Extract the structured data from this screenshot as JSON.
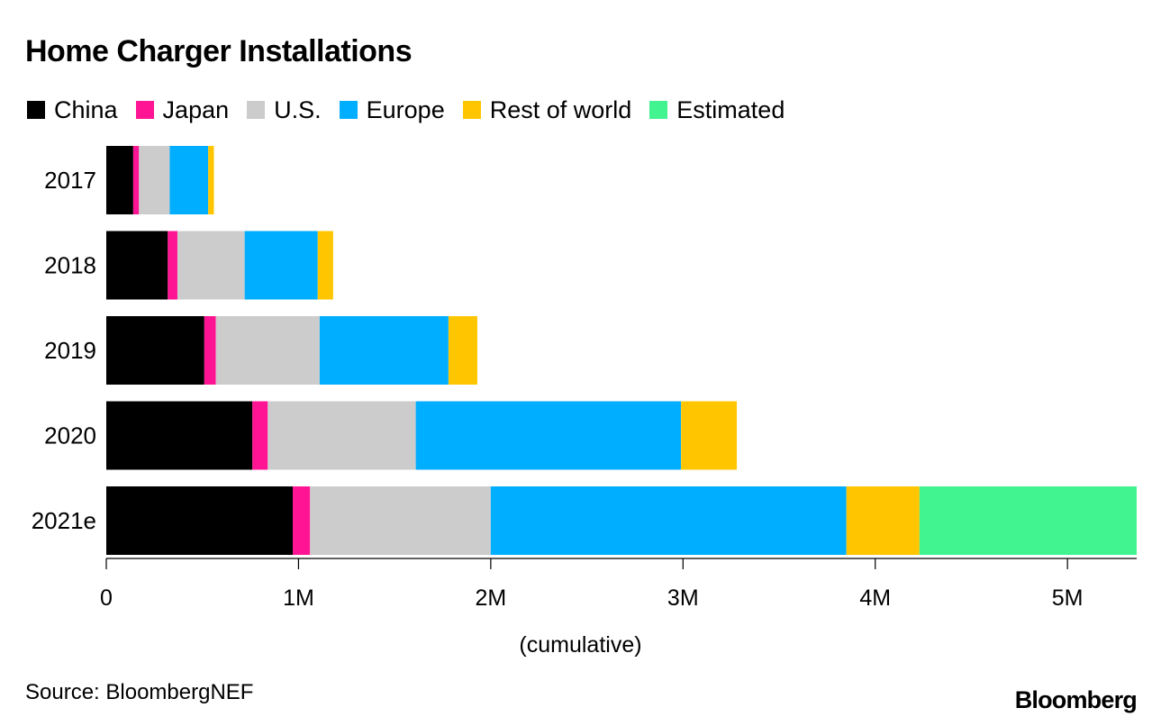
{
  "chart_data": {
    "type": "bar",
    "orientation": "horizontal",
    "stacked": true,
    "title": "Home Charger Installations",
    "xlabel": "(cumulative)",
    "ylabel": "",
    "categories": [
      "2017",
      "2018",
      "2019",
      "2020",
      "2021e"
    ],
    "series": [
      {
        "name": "China",
        "color": "#000000",
        "values": [
          140000,
          320000,
          510000,
          760000,
          970000
        ]
      },
      {
        "name": "Japan",
        "color": "#ff1493",
        "values": [
          30000,
          50000,
          60000,
          80000,
          90000
        ]
      },
      {
        "name": "U.S.",
        "color": "#cccccc",
        "values": [
          160000,
          350000,
          540000,
          770000,
          940000
        ]
      },
      {
        "name": "Europe",
        "color": "#00aeff",
        "values": [
          200000,
          380000,
          670000,
          1380000,
          1850000
        ]
      },
      {
        "name": "Rest of world",
        "color": "#ffc600",
        "values": [
          30000,
          80000,
          150000,
          290000,
          380000
        ]
      },
      {
        "name": "Estimated",
        "color": "#41f48f",
        "values": [
          0,
          0,
          0,
          0,
          1130000
        ]
      }
    ],
    "xlim": [
      0,
      5360000
    ],
    "xticks": [
      0,
      1000000,
      2000000,
      3000000,
      4000000,
      5000000
    ],
    "xtick_labels": [
      "0",
      "1M",
      "2M",
      "3M",
      "4M",
      "5M"
    ],
    "grid": false,
    "legend_position": "top-left"
  },
  "source": "Source: BloombergNEF",
  "brand": "Bloomberg"
}
